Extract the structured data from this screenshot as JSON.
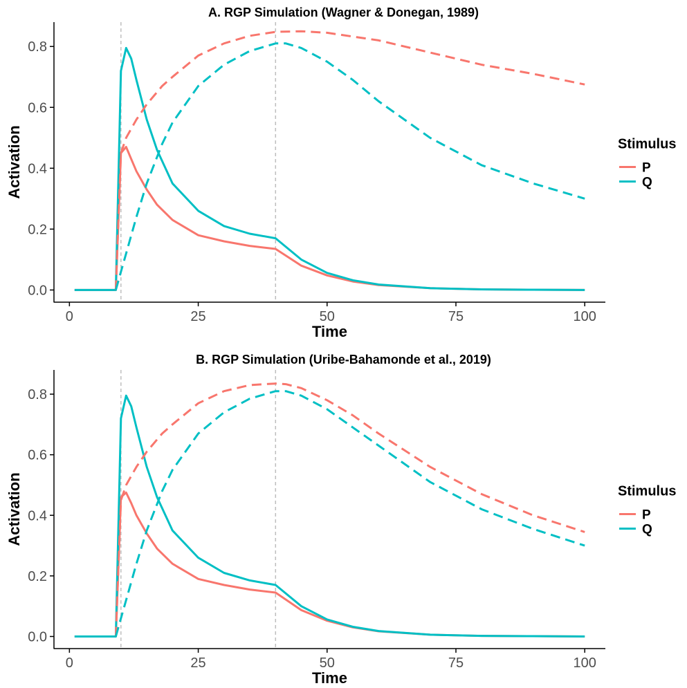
{
  "colors": {
    "P": "#F8766D",
    "Q": "#00BFC4",
    "axis": "#000000",
    "vline": "#BEBEBE"
  },
  "legend": {
    "title": "Stimulus",
    "items": [
      "P",
      "Q"
    ],
    "placement": "right"
  },
  "chart_data": [
    {
      "type": "line",
      "title": "A. RGP Simulation (Wagner & Donegan, 1989)",
      "xlabel": "Time",
      "ylabel": "Activation",
      "xlim": [
        -3,
        104
      ],
      "ylim": [
        -0.04,
        0.88
      ],
      "xticks": [
        0,
        25,
        50,
        75,
        100
      ],
      "yticks": [
        0.0,
        0.2,
        0.4,
        0.6,
        0.8
      ],
      "ytick_labels": [
        "0.0",
        "0.2",
        "0.4",
        "0.6",
        "0.8"
      ],
      "grid": false,
      "vlines": [
        10,
        40
      ],
      "series": [
        {
          "name": "P",
          "style": "solid",
          "x": [
            1,
            9,
            10,
            11,
            12,
            13,
            15,
            17,
            20,
            25,
            30,
            35,
            40,
            45,
            50,
            55,
            60,
            70,
            80,
            90,
            100
          ],
          "y": [
            0.0,
            0.0,
            0.45,
            0.47,
            0.43,
            0.39,
            0.33,
            0.28,
            0.23,
            0.18,
            0.16,
            0.145,
            0.135,
            0.08,
            0.048,
            0.028,
            0.016,
            0.006,
            0.002,
            0.001,
            0.0
          ]
        },
        {
          "name": "Q",
          "style": "solid",
          "x": [
            1,
            9,
            10,
            11,
            12,
            13,
            15,
            17,
            20,
            25,
            30,
            35,
            40,
            45,
            50,
            55,
            60,
            70,
            80,
            90,
            100
          ],
          "y": [
            0.0,
            0.0,
            0.72,
            0.795,
            0.76,
            0.69,
            0.56,
            0.46,
            0.35,
            0.26,
            0.21,
            0.185,
            0.17,
            0.1,
            0.056,
            0.032,
            0.018,
            0.006,
            0.002,
            0.001,
            0.0
          ]
        },
        {
          "name": "P",
          "style": "dashed",
          "x": [
            9,
            10,
            11,
            13,
            15,
            18,
            20,
            25,
            30,
            35,
            40,
            45,
            50,
            60,
            70,
            80,
            90,
            100
          ],
          "y": [
            0.0,
            0.45,
            0.5,
            0.56,
            0.61,
            0.67,
            0.7,
            0.77,
            0.81,
            0.835,
            0.848,
            0.85,
            0.845,
            0.82,
            0.78,
            0.74,
            0.71,
            0.675
          ]
        },
        {
          "name": "Q",
          "style": "dashed",
          "x": [
            9,
            10,
            11,
            13,
            15,
            18,
            20,
            25,
            30,
            35,
            40,
            42,
            45,
            50,
            55,
            60,
            70,
            80,
            90,
            100
          ],
          "y": [
            0.0,
            0.06,
            0.12,
            0.24,
            0.35,
            0.48,
            0.55,
            0.67,
            0.74,
            0.785,
            0.81,
            0.81,
            0.795,
            0.75,
            0.69,
            0.62,
            0.5,
            0.41,
            0.35,
            0.3
          ]
        }
      ]
    },
    {
      "type": "line",
      "title": "B. RGP Simulation (Uribe-Bahamonde et al., 2019)",
      "xlabel": "Time",
      "ylabel": "Activation",
      "xlim": [
        -3,
        104
      ],
      "ylim": [
        -0.04,
        0.88
      ],
      "xticks": [
        0,
        25,
        50,
        75,
        100
      ],
      "yticks": [
        0.0,
        0.2,
        0.4,
        0.6,
        0.8
      ],
      "ytick_labels": [
        "0.0",
        "0.2",
        "0.4",
        "0.6",
        "0.8"
      ],
      "grid": false,
      "vlines": [
        10,
        40
      ],
      "series": [
        {
          "name": "P",
          "style": "solid",
          "x": [
            1,
            9,
            10,
            11,
            12,
            13,
            15,
            17,
            20,
            25,
            30,
            35,
            40,
            45,
            50,
            55,
            60,
            70,
            80,
            90,
            100
          ],
          "y": [
            0.0,
            0.0,
            0.46,
            0.475,
            0.44,
            0.4,
            0.34,
            0.29,
            0.24,
            0.19,
            0.17,
            0.155,
            0.145,
            0.087,
            0.052,
            0.03,
            0.017,
            0.006,
            0.002,
            0.001,
            0.0
          ]
        },
        {
          "name": "Q",
          "style": "solid",
          "x": [
            1,
            9,
            10,
            11,
            12,
            13,
            15,
            17,
            20,
            25,
            30,
            35,
            40,
            45,
            50,
            55,
            60,
            70,
            80,
            90,
            100
          ],
          "y": [
            0.0,
            0.0,
            0.72,
            0.795,
            0.76,
            0.69,
            0.56,
            0.46,
            0.35,
            0.26,
            0.21,
            0.185,
            0.17,
            0.1,
            0.056,
            0.032,
            0.018,
            0.006,
            0.002,
            0.001,
            0.0
          ]
        },
        {
          "name": "P",
          "style": "dashed",
          "x": [
            9,
            10,
            11,
            13,
            15,
            18,
            20,
            25,
            30,
            35,
            40,
            42,
            45,
            50,
            55,
            60,
            70,
            80,
            90,
            100
          ],
          "y": [
            0.0,
            0.45,
            0.5,
            0.56,
            0.61,
            0.67,
            0.7,
            0.77,
            0.81,
            0.83,
            0.835,
            0.833,
            0.82,
            0.78,
            0.73,
            0.67,
            0.56,
            0.47,
            0.4,
            0.345
          ]
        },
        {
          "name": "Q",
          "style": "dashed",
          "x": [
            9,
            10,
            11,
            13,
            15,
            18,
            20,
            25,
            30,
            35,
            40,
            42,
            45,
            50,
            55,
            60,
            70,
            80,
            90,
            100
          ],
          "y": [
            0.0,
            0.06,
            0.12,
            0.24,
            0.35,
            0.48,
            0.55,
            0.67,
            0.74,
            0.785,
            0.81,
            0.81,
            0.795,
            0.75,
            0.69,
            0.63,
            0.51,
            0.42,
            0.355,
            0.3
          ]
        }
      ]
    }
  ]
}
